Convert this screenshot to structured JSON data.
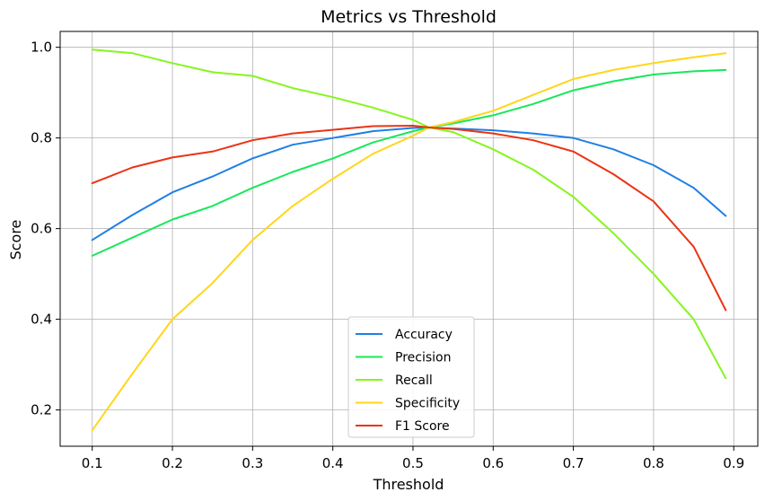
{
  "chart_data": {
    "type": "line",
    "title": "Metrics vs Threshold",
    "xlabel": "Threshold",
    "ylabel": "Score",
    "xlim": [
      0.06,
      0.93
    ],
    "ylim": [
      0.12,
      1.035
    ],
    "xticks": [
      0.1,
      0.2,
      0.3,
      0.4,
      0.5,
      0.6,
      0.7,
      0.8,
      0.9
    ],
    "xtick_labels": [
      "0.1",
      "0.2",
      "0.3",
      "0.4",
      "0.5",
      "0.6",
      "0.7",
      "0.8",
      "0.9"
    ],
    "yticks": [
      0.2,
      0.4,
      0.6,
      0.8,
      1.0
    ],
    "ytick_labels": [
      "0.2",
      "0.4",
      "0.6",
      "0.8",
      "1.0"
    ],
    "grid": true,
    "legend_position": "lower-center",
    "x": [
      0.1,
      0.15,
      0.2,
      0.25,
      0.3,
      0.35,
      0.4,
      0.45,
      0.5,
      0.52,
      0.55,
      0.6,
      0.65,
      0.7,
      0.75,
      0.8,
      0.85,
      0.89
    ],
    "series": [
      {
        "name": "Accuracy",
        "color": "#1f7fe6",
        "values": [
          0.575,
          0.63,
          0.68,
          0.715,
          0.755,
          0.785,
          0.8,
          0.815,
          0.822,
          0.823,
          0.821,
          0.817,
          0.81,
          0.8,
          0.775,
          0.74,
          0.69,
          0.628
        ]
      },
      {
        "name": "Precision",
        "color": "#17e85a",
        "values": [
          0.54,
          0.58,
          0.62,
          0.65,
          0.69,
          0.725,
          0.755,
          0.79,
          0.815,
          0.823,
          0.832,
          0.85,
          0.875,
          0.905,
          0.925,
          0.94,
          0.947,
          0.95
        ]
      },
      {
        "name": "Recall",
        "color": "#86f51f",
        "values": [
          0.995,
          0.987,
          0.965,
          0.945,
          0.937,
          0.91,
          0.89,
          0.867,
          0.84,
          0.823,
          0.813,
          0.775,
          0.73,
          0.67,
          0.59,
          0.5,
          0.4,
          0.27
        ]
      },
      {
        "name": "Specificity",
        "color": "#ffd61a",
        "values": [
          0.155,
          0.28,
          0.4,
          0.48,
          0.575,
          0.65,
          0.71,
          0.765,
          0.805,
          0.823,
          0.835,
          0.86,
          0.895,
          0.93,
          0.95,
          0.965,
          0.978,
          0.987
        ]
      },
      {
        "name": "F1 Score",
        "color": "#ea3414",
        "values": [
          0.7,
          0.735,
          0.757,
          0.77,
          0.795,
          0.81,
          0.818,
          0.826,
          0.827,
          0.823,
          0.82,
          0.81,
          0.795,
          0.77,
          0.72,
          0.66,
          0.56,
          0.42
        ]
      }
    ]
  }
}
